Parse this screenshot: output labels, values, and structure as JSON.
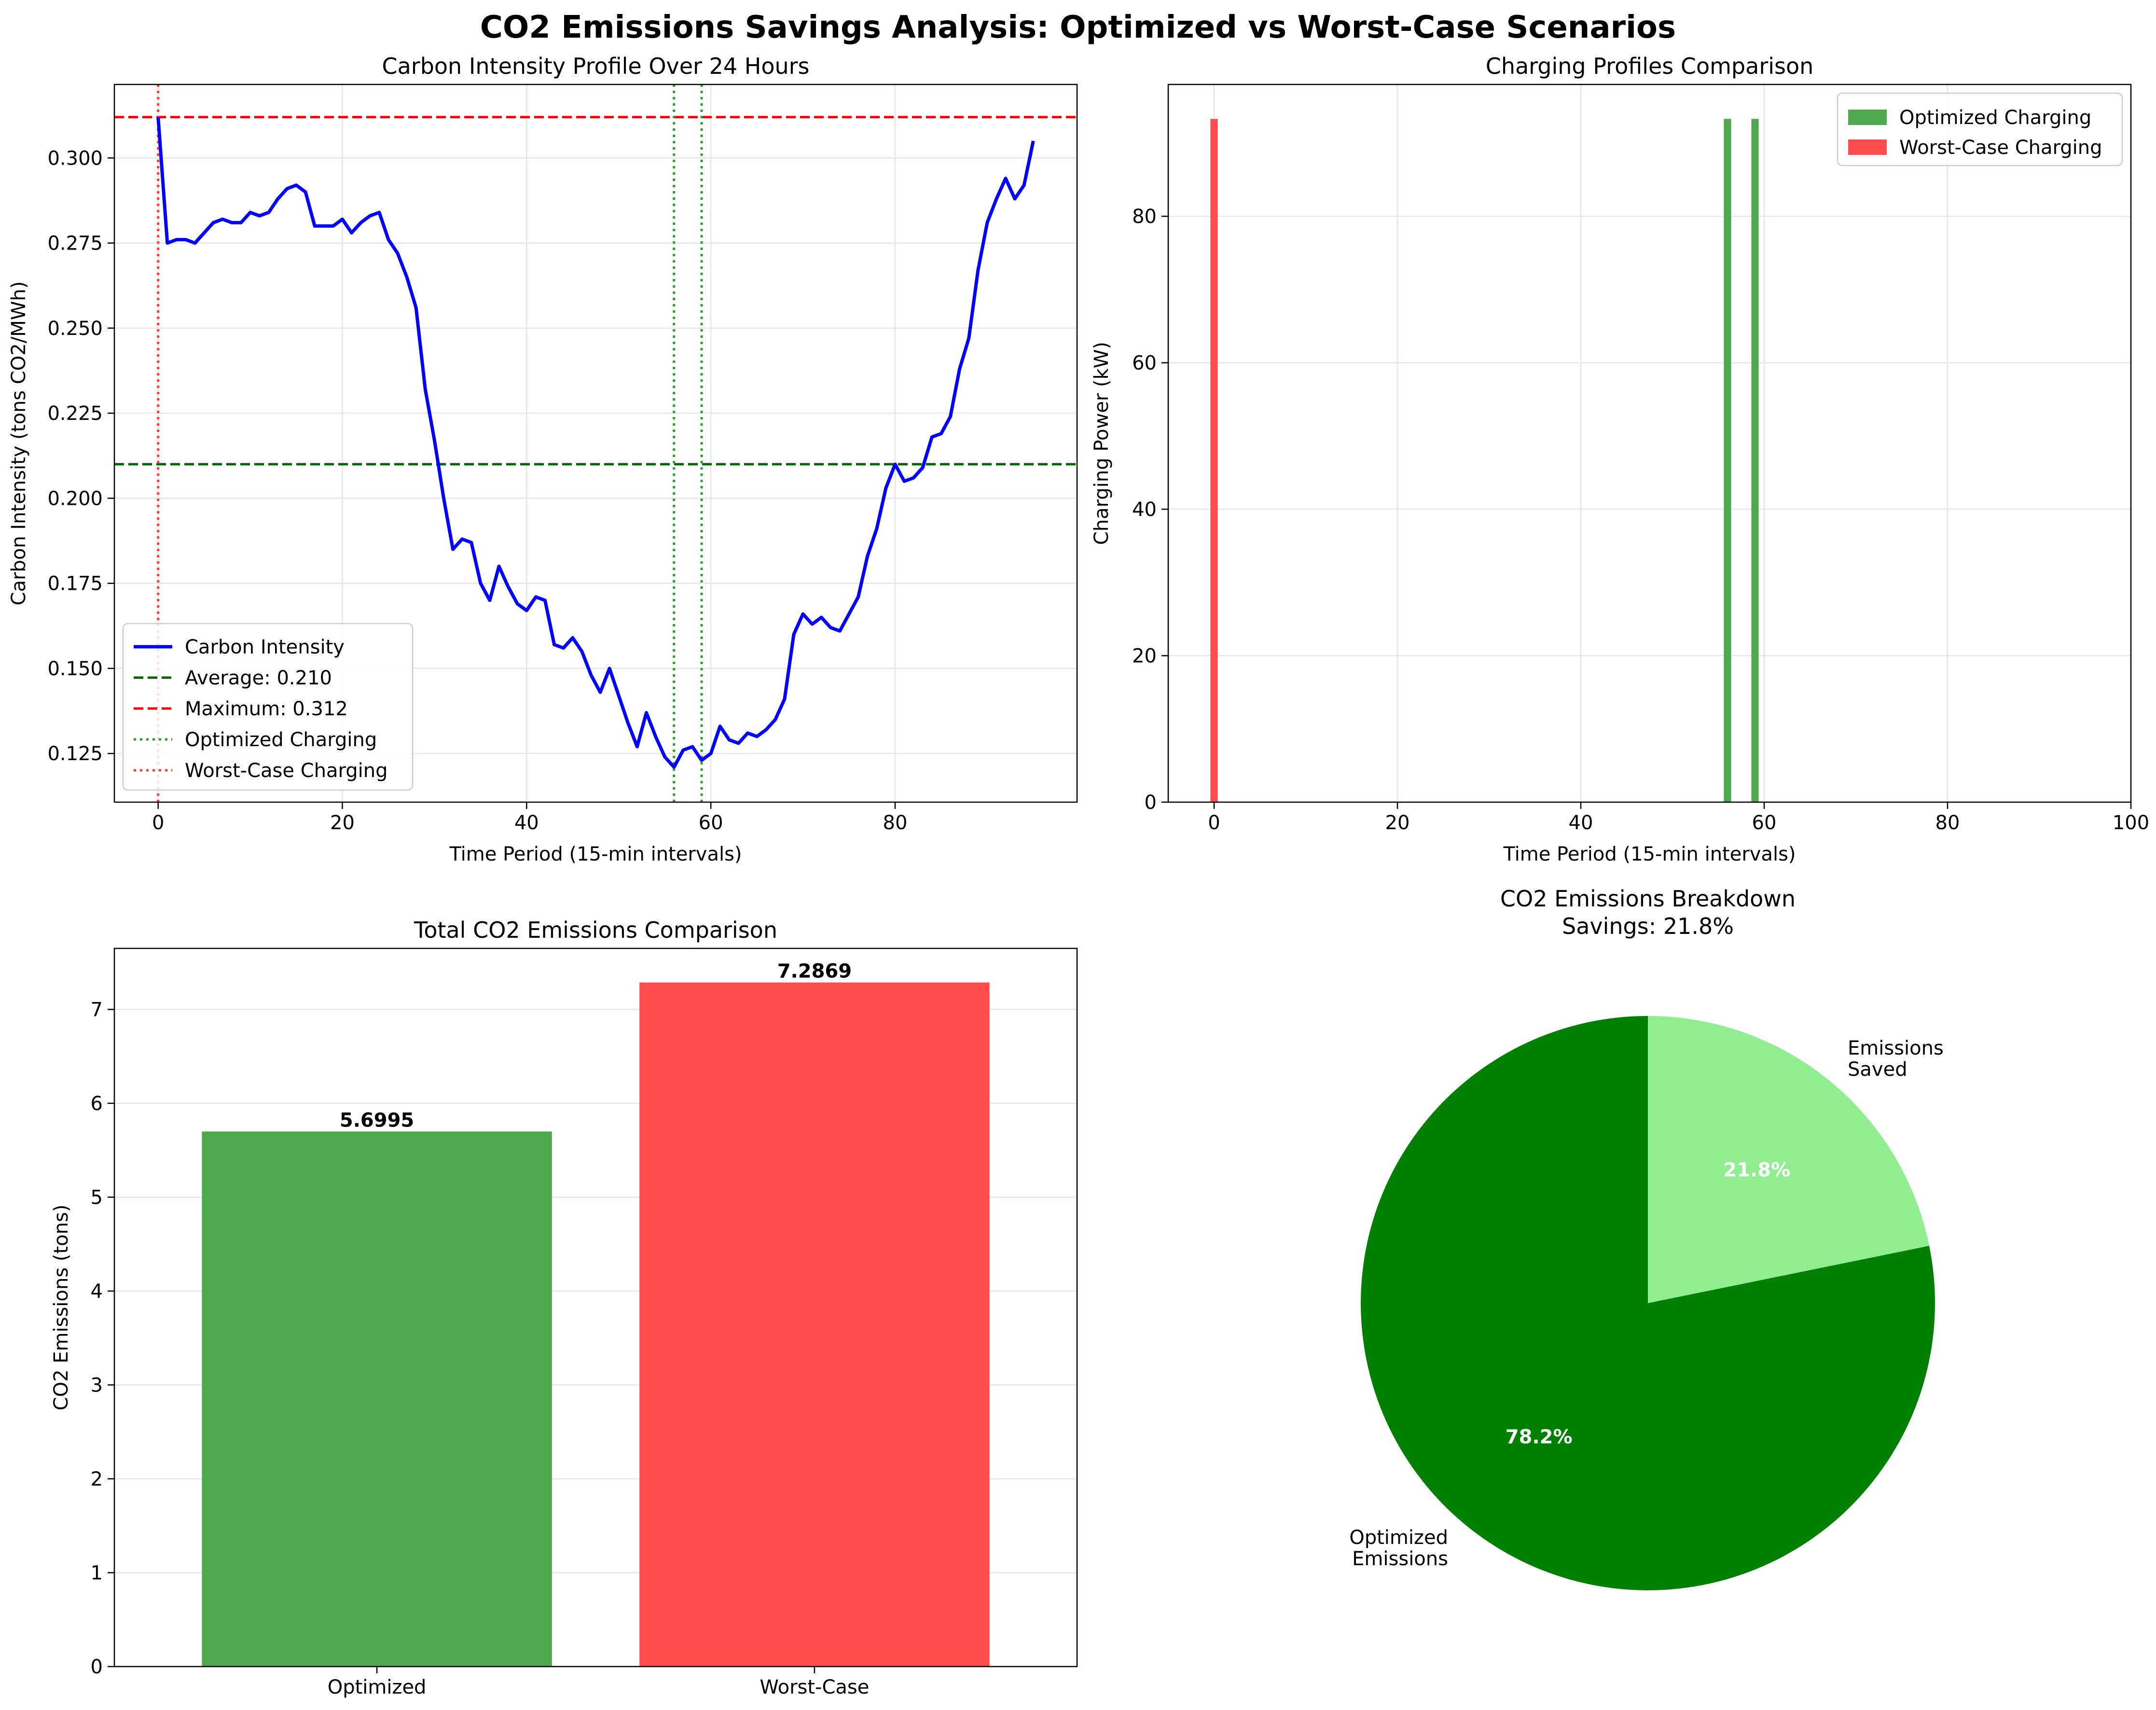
{
  "suptitle": "CO2 Emissions Savings Analysis: Optimized vs Worst-Case Scenarios",
  "colors": {
    "intensity": "#0000ff",
    "average": "#006400",
    "maximum": "#ff0000",
    "optimized_line": "#2ca02c",
    "worst_line": "#ff3b3b",
    "optimized_bar": "#4ea84e",
    "worst_bar": "#ff4d4d",
    "pie_optimized": "#008000",
    "pie_saved": "#90ee90"
  },
  "chart_data": [
    {
      "id": "intensity",
      "type": "line",
      "title": "Carbon Intensity Profile Over 24 Hours",
      "xlabel": "Time Period (15-min intervals)",
      "ylabel": "Carbon Intensity (tons CO2/MWh)",
      "xlim": [
        -4.75,
        99.75
      ],
      "ylim": [
        0.1107,
        0.3216
      ],
      "xticks": [
        0,
        20,
        40,
        60,
        80
      ],
      "yticks": [
        0.125,
        0.15,
        0.175,
        0.2,
        0.225,
        0.25,
        0.275,
        0.3
      ],
      "ytick_labels": [
        "0.125",
        "0.150",
        "0.175",
        "0.200",
        "0.225",
        "0.250",
        "0.275",
        "0.300"
      ],
      "grid": true,
      "legend_position": "lower-left",
      "series": [
        {
          "name": "Carbon Intensity",
          "x": [
            0,
            1,
            2,
            3,
            4,
            5,
            6,
            7,
            8,
            9,
            10,
            11,
            12,
            13,
            14,
            15,
            16,
            17,
            18,
            19,
            20,
            21,
            22,
            23,
            24,
            25,
            26,
            27,
            28,
            29,
            30,
            31,
            32,
            33,
            34,
            35,
            36,
            37,
            38,
            39,
            40,
            41,
            42,
            43,
            44,
            45,
            46,
            47,
            48,
            49,
            50,
            51,
            52,
            53,
            54,
            55,
            56,
            57,
            58,
            59,
            60,
            61,
            62,
            63,
            64,
            65,
            66,
            67,
            68,
            69,
            70,
            71,
            72,
            73,
            74,
            75,
            76,
            77,
            78,
            79,
            80,
            81,
            82,
            83,
            84,
            85,
            86,
            87,
            88,
            89,
            90,
            91,
            92,
            93,
            94,
            95
          ],
          "y": [
            0.312,
            0.275,
            0.276,
            0.276,
            0.275,
            0.278,
            0.281,
            0.282,
            0.281,
            0.281,
            0.284,
            0.283,
            0.284,
            0.288,
            0.291,
            0.292,
            0.29,
            0.28,
            0.28,
            0.28,
            0.282,
            0.278,
            0.281,
            0.283,
            0.284,
            0.276,
            0.272,
            0.265,
            0.256,
            0.232,
            0.217,
            0.2,
            0.185,
            0.188,
            0.187,
            0.175,
            0.17,
            0.18,
            0.174,
            0.169,
            0.167,
            0.171,
            0.17,
            0.157,
            0.156,
            0.159,
            0.155,
            0.148,
            0.143,
            0.15,
            0.142,
            0.134,
            0.127,
            0.137,
            0.13,
            0.124,
            0.121,
            0.126,
            0.127,
            0.123,
            0.125,
            0.133,
            0.129,
            0.128,
            0.131,
            0.13,
            0.132,
            0.135,
            0.141,
            0.16,
            0.166,
            0.163,
            0.165,
            0.162,
            0.161,
            0.166,
            0.171,
            0.183,
            0.191,
            0.203,
            0.21,
            0.205,
            0.206,
            0.209,
            0.218,
            0.219,
            0.224,
            0.238,
            0.247,
            0.267,
            0.281,
            0.288,
            0.294,
            0.288,
            0.292,
            0.305
          ]
        }
      ],
      "hlines": [
        {
          "name": "Average: 0.210",
          "y": 0.21
        },
        {
          "name": "Maximum: 0.312",
          "y": 0.312
        }
      ],
      "vlines": [
        {
          "name": "Optimized Charging",
          "x": [
            56,
            59
          ]
        },
        {
          "name": "Worst-Case Charging",
          "x": [
            0
          ]
        }
      ]
    },
    {
      "id": "charging",
      "type": "bar",
      "title": "Charging Profiles Comparison",
      "xlabel": "Time Period (15-min intervals)",
      "ylabel": "Charging Power (kW)",
      "xlim": [
        -5,
        100
      ],
      "ylim": [
        0,
        98
      ],
      "xticks": [
        0,
        20,
        40,
        60,
        80,
        100
      ],
      "yticks": [
        0,
        20,
        40,
        60,
        80
      ],
      "grid": true,
      "legend_position": "top-right",
      "bar_width": 0.8,
      "series": [
        {
          "name": "Optimized Charging",
          "x": [
            56,
            59
          ],
          "values": [
            93.3,
            93.3
          ]
        },
        {
          "name": "Worst-Case Charging",
          "x": [
            0
          ],
          "values": [
            93.3
          ]
        }
      ]
    },
    {
      "id": "totals",
      "type": "bar",
      "title": "Total CO2 Emissions Comparison",
      "xlabel": "",
      "ylabel": "CO2 Emissions (tons)",
      "categories": [
        "Optimized",
        "Worst-Case"
      ],
      "values": [
        5.6995,
        7.2869
      ],
      "value_labels": [
        "5.6995",
        "7.2869"
      ],
      "ylim": [
        0,
        7.65
      ],
      "yticks": [
        0,
        1,
        2,
        3,
        4,
        5,
        6,
        7
      ],
      "grid": true
    },
    {
      "id": "breakdown",
      "type": "pie",
      "title": "CO2 Emissions Breakdown",
      "subtitle": "Savings: 21.8%",
      "labels": [
        "Optimized\nEmissions",
        "Emissions\nSaved"
      ],
      "values": [
        78.2,
        21.8
      ],
      "pct_labels": [
        "78.2%",
        "21.8%"
      ],
      "start_angle": 90
    }
  ]
}
